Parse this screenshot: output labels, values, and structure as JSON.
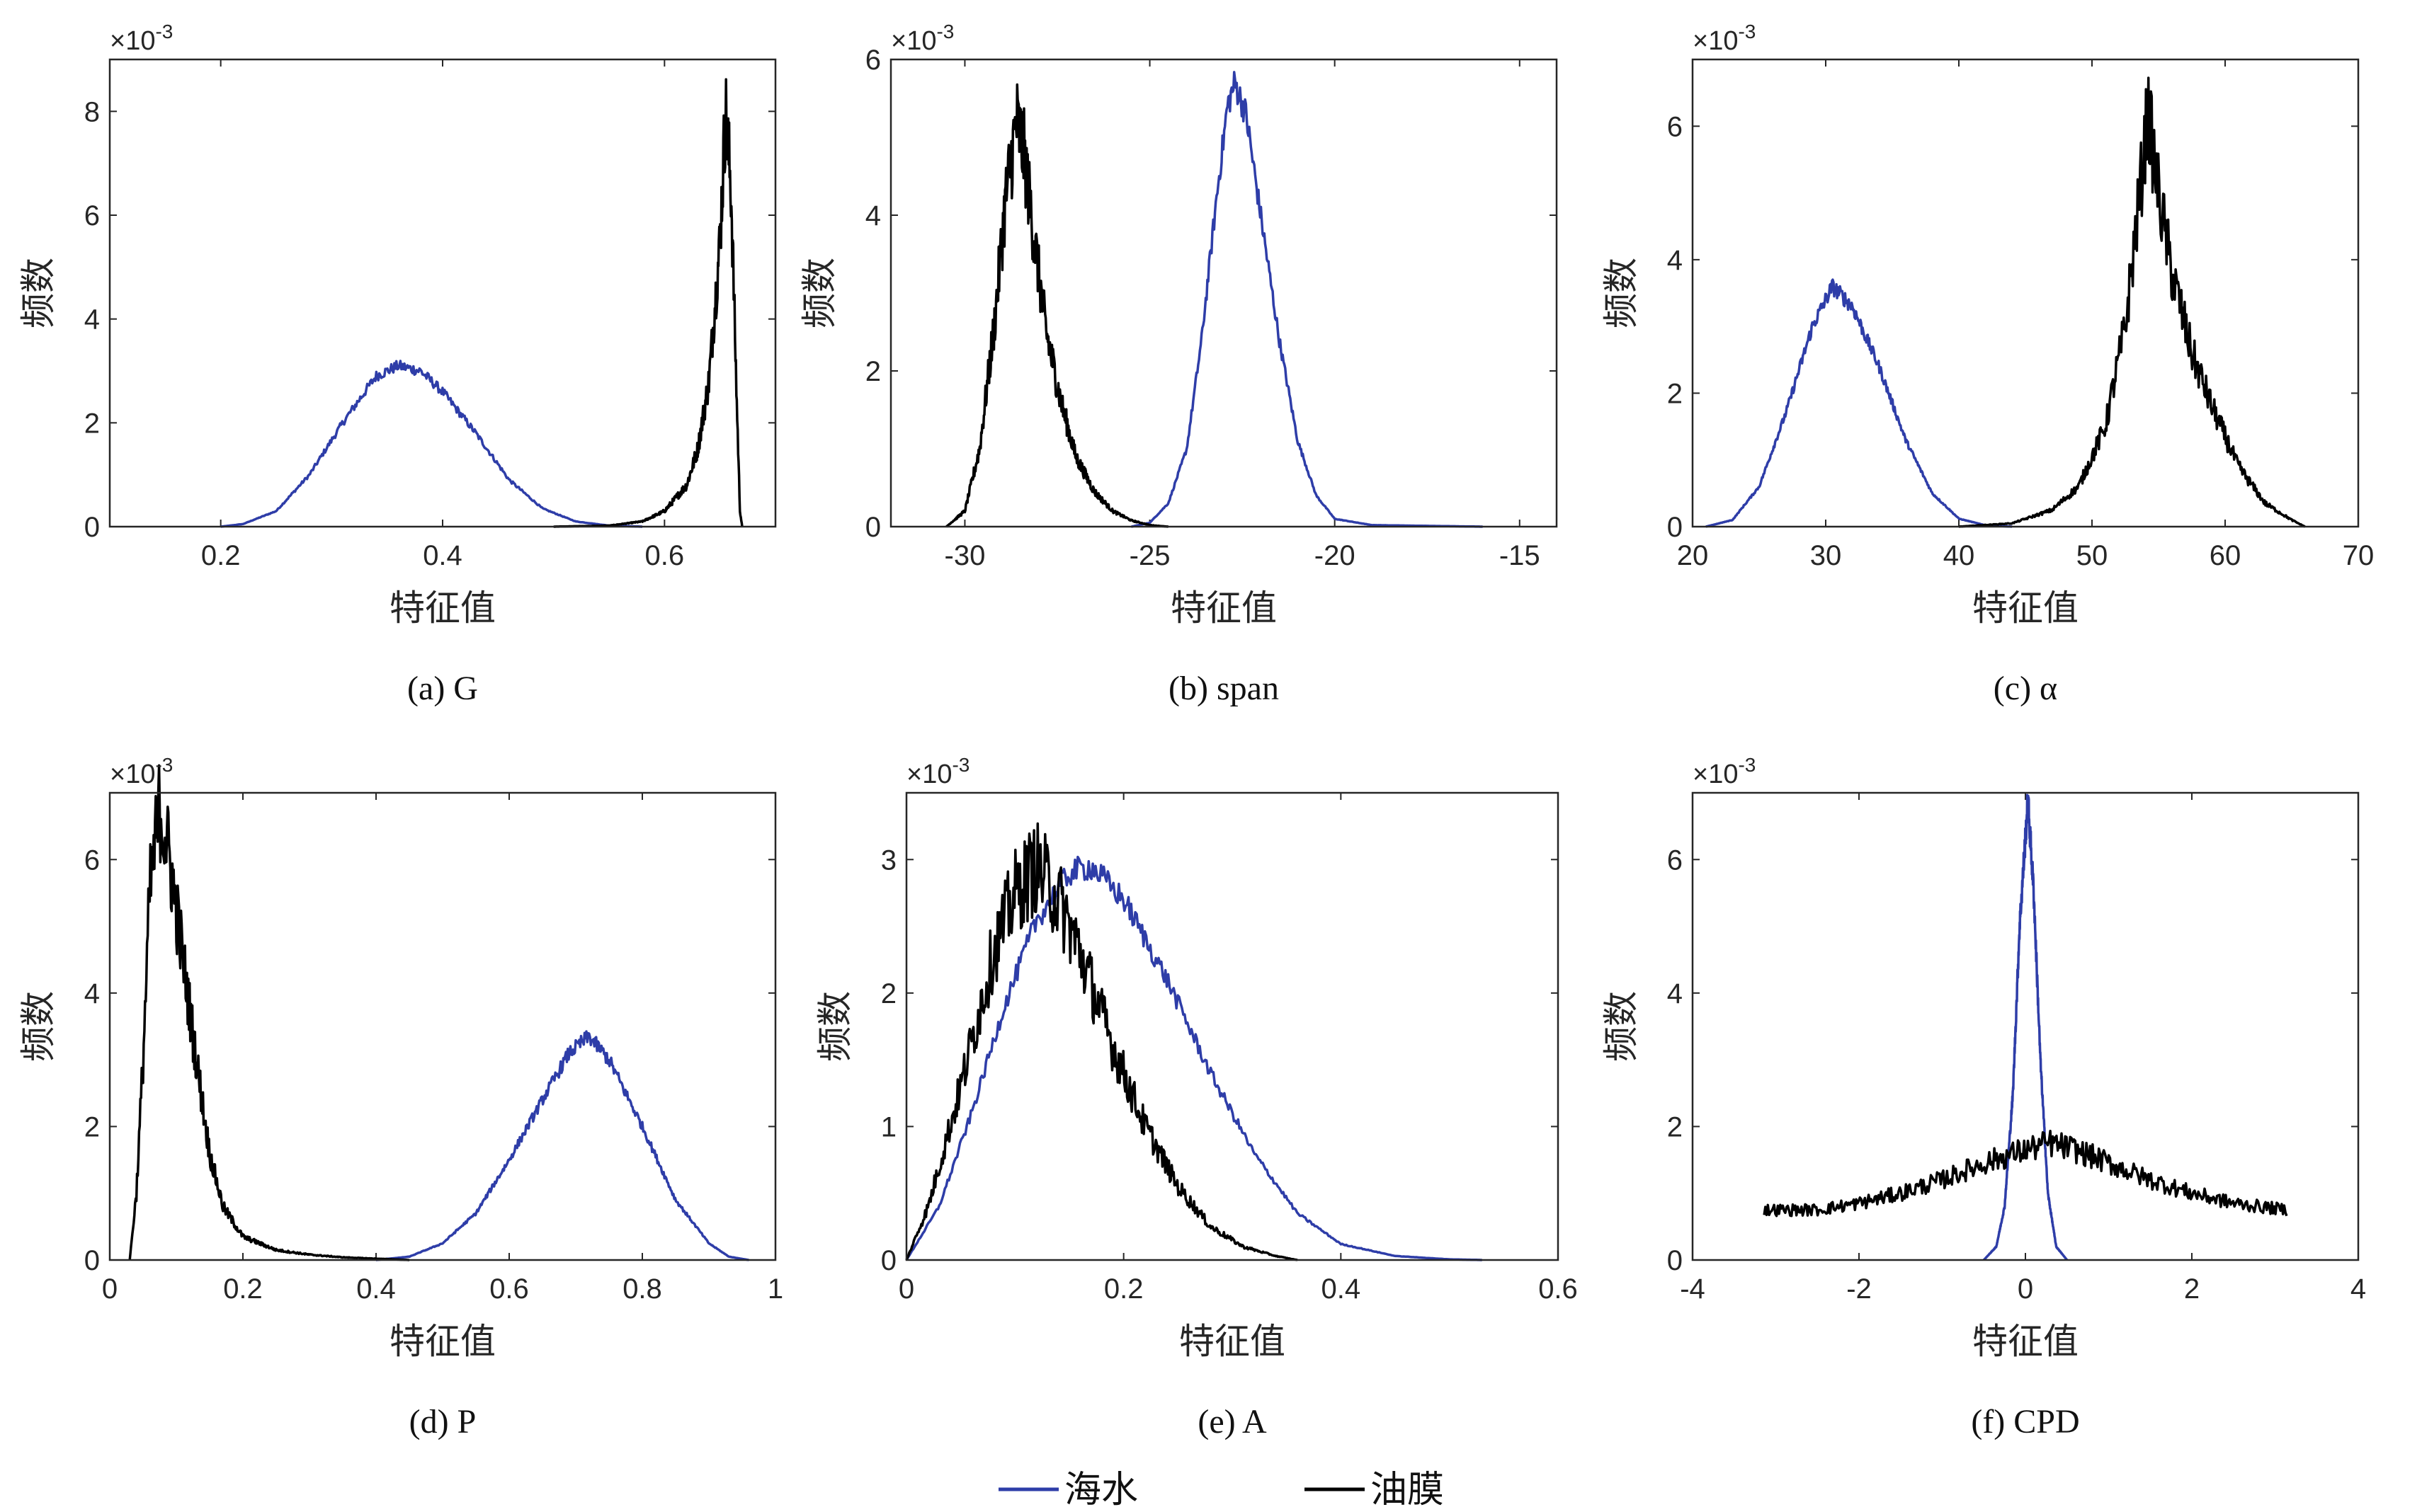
{
  "legend": {
    "items": [
      {
        "label": "海水",
        "color": "#2E3DA8"
      },
      {
        "label": "油膜",
        "color": "#000000"
      }
    ]
  },
  "chart_data": [
    {
      "type": "line",
      "caption": "(a) G",
      "xlabel": "特征值",
      "ylabel": "频数",
      "y_multiplier_label": "×10-3",
      "xlim": [
        0.1,
        0.7
      ],
      "ylim": [
        0,
        9
      ],
      "xticks": [
        0.2,
        0.4,
        0.6
      ],
      "xtick_labels": [
        "0.2",
        "0.4",
        "0.6"
      ],
      "yticks": [
        0,
        2,
        4,
        6,
        8
      ],
      "ytick_labels": [
        "0",
        "2",
        "4",
        "6",
        "8"
      ],
      "series": [
        {
          "name": "海水",
          "color": "#2E3DA8",
          "points": [
            [
              0.2,
              0
            ],
            [
              0.22,
              0.05
            ],
            [
              0.25,
              0.3
            ],
            [
              0.28,
              1.0
            ],
            [
              0.31,
              2.0
            ],
            [
              0.34,
              2.9
            ],
            [
              0.36,
              3.1
            ],
            [
              0.38,
              3.0
            ],
            [
              0.4,
              2.6
            ],
            [
              0.43,
              1.8
            ],
            [
              0.46,
              0.9
            ],
            [
              0.49,
              0.35
            ],
            [
              0.52,
              0.1
            ],
            [
              0.55,
              0.02
            ],
            [
              0.58,
              0
            ]
          ]
        },
        {
          "name": "油膜",
          "color": "#000000",
          "points": [
            [
              0.5,
              0
            ],
            [
              0.55,
              0.02
            ],
            [
              0.58,
              0.1
            ],
            [
              0.6,
              0.3
            ],
            [
              0.62,
              0.8
            ],
            [
              0.63,
              1.5
            ],
            [
              0.64,
              2.8
            ],
            [
              0.65,
              5.5
            ],
            [
              0.655,
              8.0
            ],
            [
              0.66,
              6.5
            ],
            [
              0.665,
              2.5
            ],
            [
              0.668,
              0.3
            ],
            [
              0.67,
              0
            ]
          ]
        }
      ]
    },
    {
      "type": "line",
      "caption": "(b) span",
      "xlabel": "特征值",
      "ylabel": "频数",
      "y_multiplier_label": "×10-3",
      "xlim": [
        -32,
        -14
      ],
      "ylim": [
        0,
        6
      ],
      "xticks": [
        -30,
        -25,
        -20,
        -15
      ],
      "xtick_labels": [
        "-30",
        "-25",
        "-20",
        "-15"
      ],
      "yticks": [
        0,
        2,
        4,
        6
      ],
      "ytick_labels": [
        "0",
        "2",
        "4",
        "6"
      ],
      "series": [
        {
          "name": "海水",
          "color": "#2E3DA8",
          "points": [
            [
              -25.5,
              0
            ],
            [
              -25,
              0.05
            ],
            [
              -24.5,
              0.3
            ],
            [
              -24,
              1.0
            ],
            [
              -23.6,
              2.4
            ],
            [
              -23.2,
              4.2
            ],
            [
              -22.9,
              5.4
            ],
            [
              -22.7,
              5.7
            ],
            [
              -22.4,
              5.3
            ],
            [
              -22,
              4.0
            ],
            [
              -21.5,
              2.4
            ],
            [
              -21,
              1.1
            ],
            [
              -20.5,
              0.4
            ],
            [
              -20,
              0.1
            ],
            [
              -19,
              0.02
            ],
            [
              -16,
              0
            ]
          ]
        },
        {
          "name": "油膜",
          "color": "#000000",
          "points": [
            [
              -30.5,
              0
            ],
            [
              -30,
              0.2
            ],
            [
              -29.6,
              1.0
            ],
            [
              -29.2,
              2.6
            ],
            [
              -28.9,
              4.2
            ],
            [
              -28.6,
              5.2
            ],
            [
              -28.4,
              4.8
            ],
            [
              -28.1,
              3.6
            ],
            [
              -27.8,
              2.5
            ],
            [
              -27.4,
              1.6
            ],
            [
              -27,
              0.9
            ],
            [
              -26.5,
              0.45
            ],
            [
              -26,
              0.2
            ],
            [
              -25.5,
              0.08
            ],
            [
              -25,
              0.02
            ],
            [
              -24.5,
              0
            ]
          ]
        }
      ]
    },
    {
      "type": "line",
      "caption": "(c)  α",
      "xlabel": "特征值",
      "ylabel": "频数",
      "y_multiplier_label": "×10-3",
      "xlim": [
        20,
        70
      ],
      "ylim": [
        0,
        7
      ],
      "xticks": [
        20,
        30,
        40,
        50,
        60,
        70
      ],
      "xtick_labels": [
        "20",
        "30",
        "40",
        "50",
        "60",
        "70"
      ],
      "yticks": [
        0,
        2,
        4,
        6
      ],
      "ytick_labels": [
        "0",
        "2",
        "4",
        "6"
      ],
      "series": [
        {
          "name": "海水",
          "color": "#2E3DA8",
          "points": [
            [
              21,
              0
            ],
            [
              23,
              0.1
            ],
            [
              25,
              0.6
            ],
            [
              27,
              1.7
            ],
            [
              29,
              3.0
            ],
            [
              30.5,
              3.6
            ],
            [
              32,
              3.3
            ],
            [
              34,
              2.4
            ],
            [
              36,
              1.3
            ],
            [
              38,
              0.5
            ],
            [
              40,
              0.12
            ],
            [
              42,
              0.02
            ],
            [
              44,
              0
            ]
          ]
        },
        {
          "name": "油膜",
          "color": "#000000",
          "points": [
            [
              40,
              0
            ],
            [
              44,
              0.05
            ],
            [
              47,
              0.25
            ],
            [
              49,
              0.6
            ],
            [
              51,
              1.5
            ],
            [
              52.5,
              3.0
            ],
            [
              53.5,
              4.8
            ],
            [
              54.2,
              6.2
            ],
            [
              55,
              5.0
            ],
            [
              56,
              3.8
            ],
            [
              57.5,
              2.6
            ],
            [
              59,
              1.8
            ],
            [
              61,
              0.9
            ],
            [
              63,
              0.35
            ],
            [
              65,
              0.1
            ],
            [
              66,
              0
            ]
          ]
        }
      ]
    },
    {
      "type": "line",
      "caption": "(d) P",
      "xlabel": "特征值",
      "ylabel": "频数",
      "y_multiplier_label": "×10-3",
      "xlim": [
        0,
        1
      ],
      "ylim": [
        0,
        7
      ],
      "xticks": [
        0,
        0.2,
        0.4,
        0.6,
        0.8,
        1
      ],
      "xtick_labels": [
        "0",
        "0.2",
        "0.4",
        "0.6",
        "0.8",
        "1"
      ],
      "yticks": [
        0,
        2,
        4,
        6
      ],
      "ytick_labels": [
        "0",
        "2",
        "4",
        "6"
      ],
      "series": [
        {
          "name": "海水",
          "color": "#2E3DA8",
          "points": [
            [
              0.4,
              0
            ],
            [
              0.45,
              0.05
            ],
            [
              0.5,
              0.25
            ],
            [
              0.55,
              0.7
            ],
            [
              0.6,
              1.5
            ],
            [
              0.65,
              2.4
            ],
            [
              0.69,
              3.1
            ],
            [
              0.72,
              3.35
            ],
            [
              0.75,
              3.0
            ],
            [
              0.8,
              2.0
            ],
            [
              0.85,
              0.9
            ],
            [
              0.9,
              0.25
            ],
            [
              0.93,
              0.05
            ],
            [
              0.96,
              0
            ]
          ]
        },
        {
          "name": "油膜",
          "color": "#000000",
          "points": [
            [
              0.03,
              0
            ],
            [
              0.04,
              1.0
            ],
            [
              0.05,
              3.0
            ],
            [
              0.06,
              5.5
            ],
            [
              0.075,
              6.8
            ],
            [
              0.09,
              6.0
            ],
            [
              0.11,
              4.5
            ],
            [
              0.13,
              3.0
            ],
            [
              0.15,
              1.6
            ],
            [
              0.17,
              0.8
            ],
            [
              0.2,
              0.35
            ],
            [
              0.25,
              0.15
            ],
            [
              0.3,
              0.08
            ],
            [
              0.35,
              0.04
            ],
            [
              0.4,
              0.02
            ],
            [
              0.45,
              0
            ]
          ]
        }
      ]
    },
    {
      "type": "line",
      "caption": "(e) A",
      "xlabel": "特征值",
      "ylabel": "频数",
      "y_multiplier_label": "×10-3",
      "xlim": [
        0,
        0.6
      ],
      "ylim": [
        0,
        3.5
      ],
      "xticks": [
        0,
        0.2,
        0.4,
        0.6
      ],
      "xtick_labels": [
        "0",
        "0.2",
        "0.4",
        "0.6"
      ],
      "yticks": [
        0,
        1,
        2,
        3
      ],
      "ytick_labels": [
        "0",
        "1",
        "2",
        "3"
      ],
      "series": [
        {
          "name": "海水",
          "color": "#2E3DA8",
          "points": [
            [
              0,
              0
            ],
            [
              0.03,
              0.4
            ],
            [
              0.06,
              1.1
            ],
            [
              0.09,
              1.9
            ],
            [
              0.12,
              2.55
            ],
            [
              0.15,
              2.9
            ],
            [
              0.17,
              2.95
            ],
            [
              0.2,
              2.7
            ],
            [
              0.24,
              2.1
            ],
            [
              0.28,
              1.4
            ],
            [
              0.32,
              0.8
            ],
            [
              0.36,
              0.35
            ],
            [
              0.4,
              0.12
            ],
            [
              0.45,
              0.03
            ],
            [
              0.5,
              0.005
            ],
            [
              0.53,
              0
            ]
          ]
        },
        {
          "name": "油膜",
          "color": "#000000",
          "points": [
            [
              0,
              0
            ],
            [
              0.02,
              0.4
            ],
            [
              0.05,
              1.3
            ],
            [
              0.08,
              2.3
            ],
            [
              0.1,
              2.75
            ],
            [
              0.12,
              2.95
            ],
            [
              0.14,
              2.7
            ],
            [
              0.16,
              2.3
            ],
            [
              0.19,
              1.6
            ],
            [
              0.22,
              1.0
            ],
            [
              0.25,
              0.55
            ],
            [
              0.28,
              0.25
            ],
            [
              0.31,
              0.1
            ],
            [
              0.34,
              0.03
            ],
            [
              0.36,
              0
            ]
          ]
        }
      ]
    },
    {
      "type": "line",
      "caption": "(f) CPD",
      "xlabel": "特征值",
      "ylabel": "频数",
      "y_multiplier_label": "×10-3",
      "xlim": [
        -4,
        4
      ],
      "ylim": [
        0,
        7
      ],
      "xticks": [
        -4,
        -2,
        0,
        2,
        4
      ],
      "xtick_labels": [
        "-4",
        "-2",
        "0",
        "2",
        "4"
      ],
      "yticks": [
        0,
        2,
        4,
        6
      ],
      "ytick_labels": [
        "0",
        "2",
        "4",
        "6"
      ],
      "series": [
        {
          "name": "海水",
          "color": "#2E3DA8",
          "points": [
            [
              -0.5,
              0
            ],
            [
              -0.35,
              0.2
            ],
            [
              -0.25,
              0.8
            ],
            [
              -0.15,
              2.5
            ],
            [
              -0.07,
              5.0
            ],
            [
              0.03,
              6.9
            ],
            [
              0.1,
              5.5
            ],
            [
              0.18,
              3.0
            ],
            [
              0.27,
              1.0
            ],
            [
              0.37,
              0.2
            ],
            [
              0.5,
              0
            ]
          ]
        },
        {
          "name": "油膜",
          "color": "#000000",
          "points": [
            [
              -3.14,
              0.75
            ],
            [
              -2.5,
              0.75
            ],
            [
              -2,
              0.85
            ],
            [
              -1.5,
              1.0
            ],
            [
              -1,
              1.2
            ],
            [
              -0.5,
              1.45
            ],
            [
              0,
              1.65
            ],
            [
              0.3,
              1.75
            ],
            [
              0.6,
              1.65
            ],
            [
              1,
              1.45
            ],
            [
              1.5,
              1.2
            ],
            [
              2,
              1.0
            ],
            [
              2.5,
              0.85
            ],
            [
              3.14,
              0.75
            ]
          ]
        }
      ]
    }
  ]
}
